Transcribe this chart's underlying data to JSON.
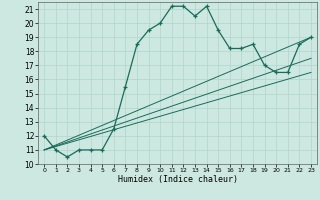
{
  "xlabel": "Humidex (Indice chaleur)",
  "bg_color": "#cce8e0",
  "line_color": "#1a6b5a",
  "grid_color": "#b0d4cc",
  "xlim": [
    -0.5,
    23.5
  ],
  "ylim": [
    10,
    21.5
  ],
  "xticks": [
    0,
    1,
    2,
    3,
    4,
    5,
    6,
    7,
    8,
    9,
    10,
    11,
    12,
    13,
    14,
    15,
    16,
    17,
    18,
    19,
    20,
    21,
    22,
    23
  ],
  "yticks": [
    10,
    11,
    12,
    13,
    14,
    15,
    16,
    17,
    18,
    19,
    20,
    21
  ],
  "main_x": [
    0,
    1,
    2,
    3,
    4,
    5,
    6,
    7,
    8,
    9,
    10,
    11,
    12,
    13,
    14,
    15,
    16,
    17,
    18,
    19,
    20,
    21,
    22,
    23
  ],
  "main_y": [
    12,
    11,
    10.5,
    11,
    11,
    11,
    12.5,
    15.5,
    18.5,
    19.5,
    20,
    21.2,
    21.2,
    20.5,
    21.2,
    19.5,
    18.2,
    18.2,
    18.5,
    17,
    16.5,
    16.5,
    18.5,
    19
  ],
  "line1_x": [
    0,
    23
  ],
  "line1_y": [
    11,
    19
  ],
  "line2_x": [
    0,
    23
  ],
  "line2_y": [
    11,
    17.5
  ],
  "line3_x": [
    0,
    23
  ],
  "line3_y": [
    11,
    16.5
  ]
}
